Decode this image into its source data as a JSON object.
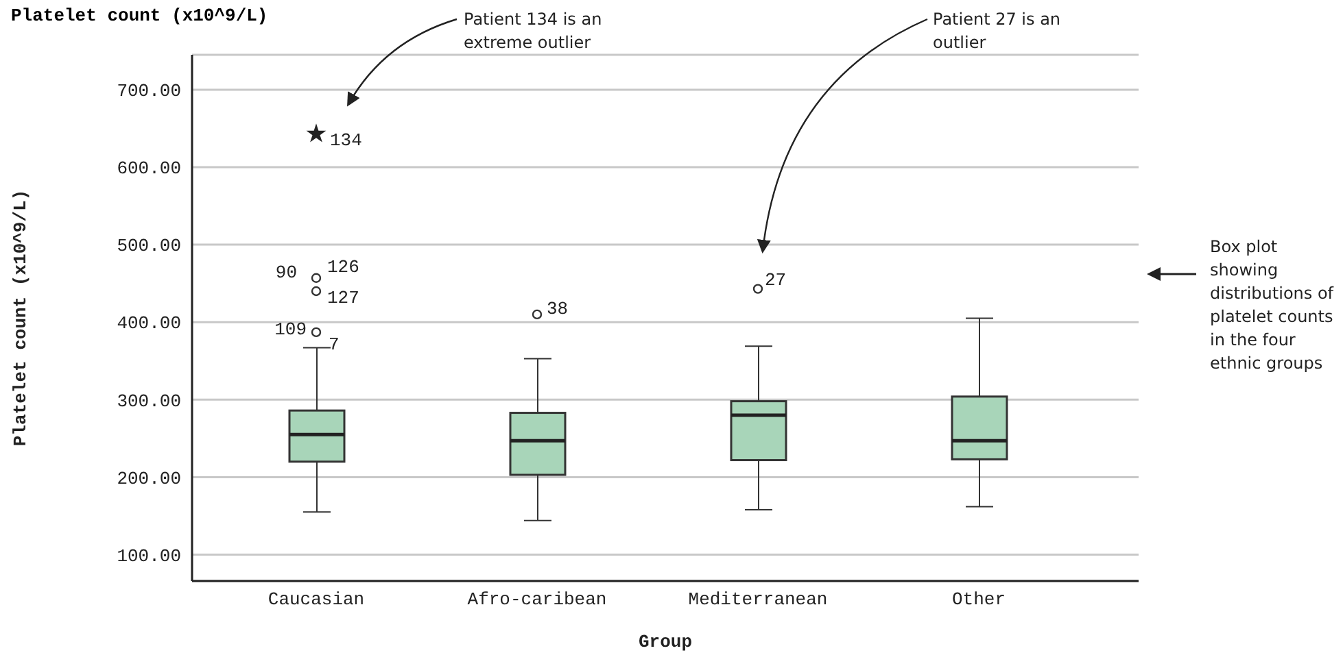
{
  "chart_data": {
    "type": "box",
    "title": "Platelet count (x10^9/L)",
    "xlabel": "Group",
    "ylabel": "Platelet count (x10^9/L)",
    "categories": [
      "Caucasian",
      "Afro-caribean",
      "Mediterranean",
      "Other"
    ],
    "series": [
      {
        "color": "#a8d5b9",
        "boxes": [
          {
            "low": 155,
            "q1": 220,
            "median": 255,
            "q3": 286,
            "high": 367
          },
          {
            "low": 144,
            "q1": 203,
            "median": 247,
            "q3": 283,
            "high": 353
          },
          {
            "low": 158,
            "q1": 222,
            "median": 280,
            "q3": 298,
            "high": 369
          },
          {
            "low": 162,
            "q1": 223,
            "median": 247,
            "q3": 304,
            "high": 405
          }
        ]
      },
      {
        "type": "scatter",
        "marker": "circle",
        "color": "#333333",
        "x": [
          "Caucasian",
          "Caucasian",
          "Caucasian",
          "Afro-caribean",
          "Mediterranean"
        ],
        "values": [
          387,
          440,
          457,
          410,
          443
        ]
      },
      {
        "type": "scatter",
        "marker": "star",
        "color": "#222222",
        "x": [
          "Caucasian"
        ],
        "values": [
          643
        ]
      }
    ],
    "ylim": [
      66,
      745
    ],
    "yticks": [
      {
        "value": 100,
        "label": "100.00"
      },
      {
        "value": 200,
        "label": "200.00"
      },
      {
        "value": 300,
        "label": "300.00"
      },
      {
        "value": 400,
        "label": "400.00"
      },
      {
        "value": 500,
        "label": "500.00"
      },
      {
        "value": 600,
        "label": "600.00"
      },
      {
        "value": 700,
        "label": "700.00"
      }
    ],
    "grid": "y",
    "annotations": [
      {
        "text": "134",
        "x": "Caucasian",
        "y": 643
      },
      {
        "text": "90",
        "x": "Caucasian",
        "y": 457
      },
      {
        "text": "126",
        "x": "Caucasian",
        "y": 457
      },
      {
        "text": "127",
        "x": "Caucasian",
        "y": 440
      },
      {
        "text": "109",
        "x": "Caucasian",
        "y": 387
      },
      {
        "text": "7",
        "x": "Caucasian",
        "y": 387
      },
      {
        "text": "38",
        "x": "Afro-caribean",
        "y": 410
      },
      {
        "text": "27",
        "x": "Mediterranean",
        "y": 443
      },
      "Patient 134 is an extreme outlier",
      "Patient 27 is an outlier",
      "Box plot showing distributions of platelet counts in the four ethnic groups"
    ]
  }
}
